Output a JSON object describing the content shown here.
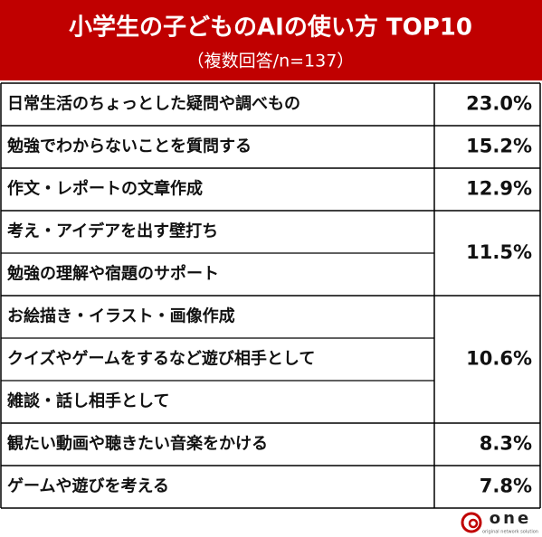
{
  "header": {
    "title": "小学生の子どものAIの使い方 TOP10",
    "subtitle": "（複数回答/n=137）"
  },
  "table": {
    "groups": [
      {
        "labels": [
          "日常生活のちょっとした疑問や調べもの"
        ],
        "value": "23.0%"
      },
      {
        "labels": [
          "勉強でわからないことを質問する"
        ],
        "value": "15.2%"
      },
      {
        "labels": [
          "作文・レポートの文章作成"
        ],
        "value": "12.9%"
      },
      {
        "labels": [
          "考え・アイデアを出す壁打ち",
          "勉強の理解や宿題のサポート"
        ],
        "value": "11.5%"
      },
      {
        "labels": [
          "お絵描き・イラスト・画像作成",
          "クイズやゲームをするなど遊び相手として",
          "雑談・話し相手として"
        ],
        "value": "10.6%"
      },
      {
        "labels": [
          "観たい動画や聴きたい音楽をかける"
        ],
        "value": "8.3%"
      },
      {
        "labels": [
          "ゲームや遊びを考える"
        ],
        "value": "7.8%"
      }
    ]
  },
  "logo": {
    "name": "one",
    "tagline": "original network solution"
  }
}
